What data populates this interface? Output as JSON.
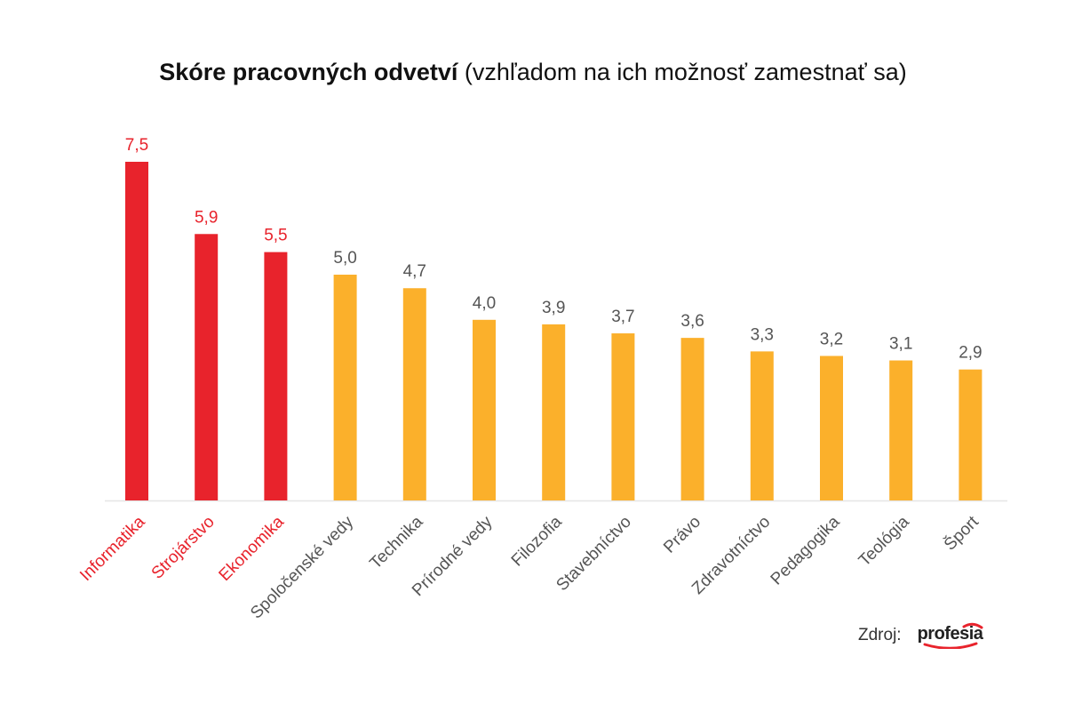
{
  "title": {
    "bold": "Skóre pracovných odvetví",
    "normal": "(vzhľadom na ich možnosť zamestnať sa)"
  },
  "chart_data": {
    "type": "bar",
    "title": "Skóre pracovných odvetví (vzhľadom na ich možnosť zamestnať sa)",
    "categories": [
      "Informatika",
      "Strojárstvo",
      "Ekonomika",
      "Spoločenské vedy",
      "Technika",
      "Prírodné vedy",
      "Filozofia",
      "Stavebníctvo",
      "Právo",
      "Zdravotníctvo",
      "Pedagogika",
      "Teológia",
      "Šport"
    ],
    "values": [
      7.5,
      5.9,
      5.5,
      5.0,
      4.7,
      4.0,
      3.9,
      3.7,
      3.6,
      3.3,
      3.2,
      3.1,
      2.9
    ],
    "value_labels": [
      "7,5",
      "5,9",
      "5,5",
      "5,0",
      "4,7",
      "4,0",
      "3,9",
      "3,7",
      "3,6",
      "3,3",
      "3,2",
      "3,1",
      "2,9"
    ],
    "highlight_count": 3,
    "colors": {
      "highlight": "#e8232c",
      "default": "#fbb02b",
      "highlight_text": "#e8232c",
      "default_text": "#555555",
      "baseline": "#e6e6e6"
    },
    "ylim": [
      0,
      7.5
    ],
    "grid": false,
    "legend": "none"
  },
  "source": {
    "label": "Zdroj:",
    "logo_text": "profesia",
    "logo_color": "#e8232c"
  }
}
